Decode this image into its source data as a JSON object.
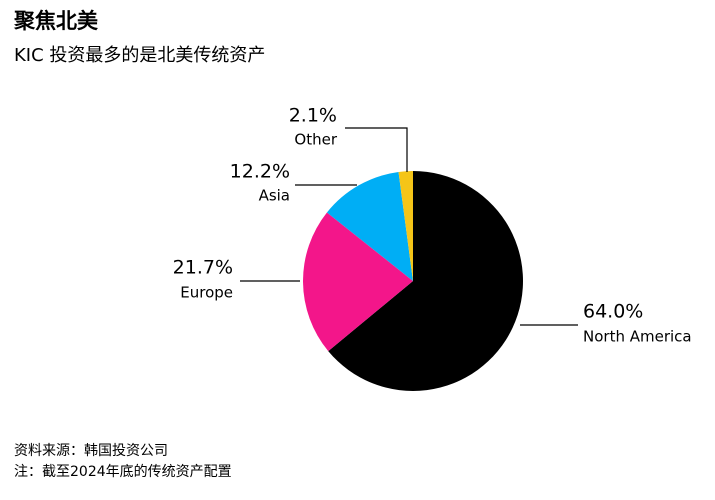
{
  "chart_data": {
    "type": "pie",
    "title": "聚焦北美",
    "subtitle": "KIC 投资最多的是北美传统资产",
    "categories": [
      "North America",
      "Europe",
      "Asia",
      "Other"
    ],
    "values": [
      64.0,
      21.7,
      12.2,
      2.1
    ],
    "value_labels": [
      "64.0%",
      "21.7%",
      "12.2%",
      "2.1%"
    ],
    "colors": [
      "#000000",
      "#f3168a",
      "#00aef5",
      "#f5c518"
    ],
    "notes": [
      "资料来源：韩国投资公司",
      "注：截至2024年底的传统资产配置"
    ]
  }
}
